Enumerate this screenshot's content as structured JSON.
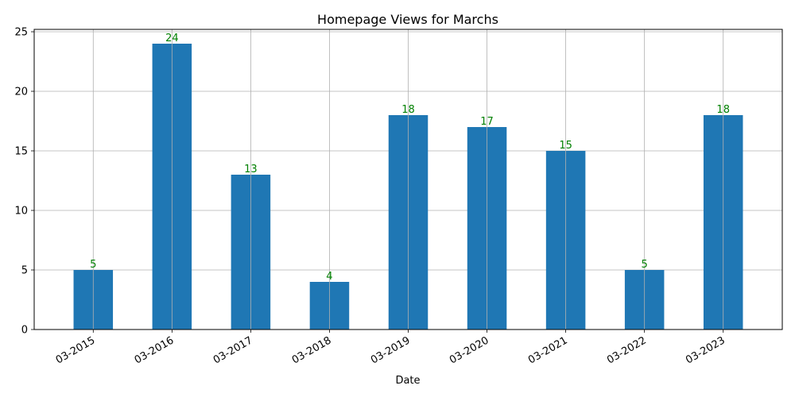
{
  "chart_data": {
    "type": "bar",
    "title": "Homepage Views for Marchs",
    "xlabel": "Date",
    "ylabel": "",
    "categories": [
      "03-2015",
      "03-2016",
      "03-2017",
      "03-2018",
      "03-2019",
      "03-2020",
      "03-2021",
      "03-2022",
      "03-2023"
    ],
    "values": [
      5,
      24,
      13,
      4,
      18,
      17,
      15,
      5,
      18
    ],
    "ylim": [
      0,
      25.2
    ],
    "yticks": [
      0,
      5,
      10,
      15,
      20,
      25
    ],
    "grid": true,
    "x_tick_rotation_deg": 30,
    "colors": {
      "bar": "#1f77b4",
      "data_label": "#008000",
      "grid": "#b0b0b0",
      "axis": "#000000"
    }
  }
}
